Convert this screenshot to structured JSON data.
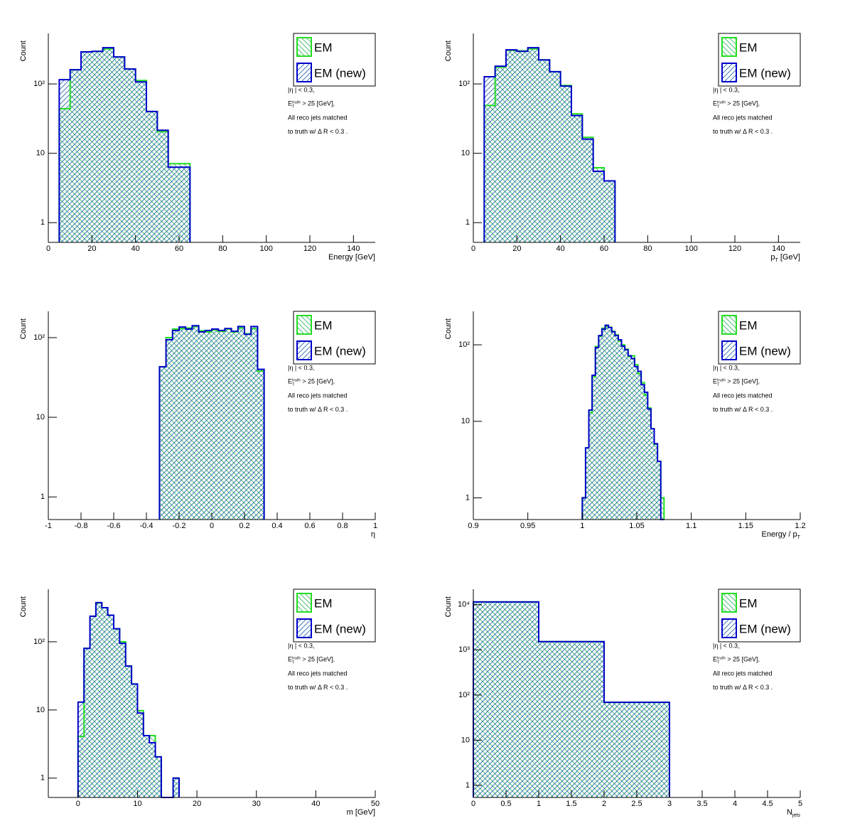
{
  "chart_data": [
    {
      "type": "histogram",
      "x_label": "Energy [GeV]",
      "y_label": "Count",
      "log_y": true,
      "legend": "upper right",
      "xlim": [
        0,
        150
      ],
      "xticks": [
        0,
        20,
        40,
        60,
        80,
        100,
        120,
        140
      ],
      "ylim": [
        0.52,
        535
      ],
      "yticks": [
        1,
        10,
        {
          "value": 100,
          "label": "10²"
        }
      ],
      "annotations": [
        "|η | < 0.3,",
        {
          "text": "E",
          "sup": "truth",
          "sub": "T",
          "suffix": " > 25 [GeV],"
        },
        "All reco jets matched",
        "to truth w/ Δ R < 0.3 ."
      ],
      "bins": [
        5,
        10,
        15,
        20,
        25,
        30,
        35,
        40,
        45,
        50,
        55,
        60,
        65
      ],
      "series": [
        {
          "name": "EM",
          "color": "#22dd22",
          "values": [
            44,
            160,
            290,
            295,
            320,
            245,
            164,
            112,
            40,
            20.5,
            7.1,
            7.1
          ]
        },
        {
          "name": "EM (new)",
          "color": "#0000cc",
          "values": [
            115,
            160,
            290,
            295,
            333,
            245,
            164,
            107,
            40,
            21.5,
            6.3,
            6.3
          ]
        }
      ]
    },
    {
      "type": "histogram",
      "x_label": {
        "text": "p",
        "sub": "T",
        "suffix": " [GeV]"
      },
      "y_label": "Count",
      "log_y": true,
      "legend": "upper right",
      "xlim": [
        0,
        150
      ],
      "xticks": [
        0,
        20,
        40,
        60,
        80,
        100,
        120,
        140
      ],
      "ylim": [
        0.52,
        535
      ],
      "yticks": [
        1,
        10,
        {
          "value": 100,
          "label": "10²"
        }
      ],
      "annotations": [
        "|η | < 0.3,",
        {
          "text": "E",
          "sup": "truth",
          "sub": "T",
          "suffix": " > 25 [GeV],"
        },
        "All reco jets matched",
        "to truth w/ Δ R < 0.3 ."
      ],
      "bins": [
        5,
        10,
        15,
        20,
        25,
        30,
        35,
        40,
        45,
        50,
        55,
        60,
        65
      ],
      "series": [
        {
          "name": "EM",
          "color": "#22dd22",
          "values": [
            49,
            175,
            305,
            300,
            320,
            222,
            150,
            95,
            37,
            17,
            6.2,
            4
          ]
        },
        {
          "name": "EM (new)",
          "color": "#0000cc",
          "values": [
            127,
            180,
            310,
            295,
            333,
            222,
            150,
            93,
            35,
            16,
            5.5,
            4
          ]
        }
      ]
    },
    {
      "type": "histogram",
      "x_label": "η",
      "y_label": "Count",
      "log_y": true,
      "legend": "upper right",
      "xlim": [
        -1,
        1
      ],
      "xticks": [
        -1,
        -0.8,
        -0.6,
        -0.4,
        -0.2,
        0,
        0.2,
        0.4,
        0.6,
        0.8,
        1
      ],
      "ylim": [
        0.52,
        214
      ],
      "yticks": [
        1,
        10,
        {
          "value": 100,
          "label": "10²"
        }
      ],
      "annotations": [
        "|η | < 0.3,",
        {
          "text": "E",
          "sup": "truth",
          "sub": "T",
          "suffix": " > 25 [GeV],"
        },
        "All reco jets matched",
        "to truth w/ Δ R < 0.3 ."
      ],
      "bins": [
        -0.32,
        -0.28,
        -0.24,
        -0.2,
        -0.16,
        -0.12,
        -0.08,
        -0.04,
        0,
        0.04,
        0.08,
        0.12,
        0.16,
        0.2,
        0.24,
        0.28,
        0.32
      ],
      "series": [
        {
          "name": "EM",
          "color": "#22dd22",
          "values": [
            43,
            100,
            128,
            130,
            132,
            138,
            122,
            118,
            125,
            120,
            128,
            118,
            132,
            112,
            130,
            38
          ]
        },
        {
          "name": "EM (new)",
          "color": "#0000cc",
          "values": [
            43,
            94,
            123,
            136,
            128,
            141,
            118,
            123,
            128,
            123,
            130,
            120,
            138,
            110,
            138,
            40
          ]
        }
      ]
    },
    {
      "type": "histogram",
      "x_label": {
        "text": "Energy / p",
        "sub": "T"
      },
      "y_label": "Count",
      "log_y": true,
      "legend": "upper right",
      "xlim": [
        0.9,
        1.2
      ],
      "xticks": [
        0.9,
        0.95,
        1,
        1.05,
        1.1,
        1.15,
        1.2
      ],
      "ylim": [
        0.52,
        274
      ],
      "yticks": [
        1,
        10,
        {
          "value": 100,
          "label": "10²"
        }
      ],
      "annotations": [
        "|η | < 0.3,",
        {
          "text": "E",
          "sup": "truth",
          "sub": "T",
          "suffix": " > 25 [GeV],"
        },
        "All reco jets matched",
        "to truth w/ Δ R < 0.3 ."
      ],
      "bins": [
        1,
        1.003,
        1.006,
        1.009,
        1.012,
        1.015,
        1.018,
        1.021,
        1.024,
        1.027,
        1.03,
        1.033,
        1.036,
        1.039,
        1.042,
        1.045,
        1.048,
        1.051,
        1.054,
        1.057,
        1.06,
        1.063,
        1.066,
        1.069,
        1.072,
        1.075
      ],
      "series": [
        {
          "name": "EM",
          "color": "#22dd22",
          "values": [
            1,
            4.5,
            13,
            38,
            95,
            130,
            165,
            175,
            170,
            150,
            135,
            112,
            100,
            88,
            70,
            72,
            55,
            42,
            32,
            22,
            15,
            8,
            5,
            3,
            1
          ]
        },
        {
          "name": "EM (new)",
          "color": "#0000cc",
          "values": [
            1,
            4.5,
            14,
            40,
            92,
            132,
            160,
            180,
            168,
            148,
            132,
            116,
            96,
            86,
            72,
            66,
            52,
            45,
            30,
            24,
            14.5,
            8,
            5.1,
            3,
            0
          ]
        }
      ]
    },
    {
      "type": "histogram",
      "x_label": "m [GeV]",
      "y_label": "Count",
      "log_y": true,
      "legend": "upper right",
      "xlim": [
        -5,
        50
      ],
      "xticks": [
        0,
        10,
        20,
        30,
        40,
        50
      ],
      "ylim": [
        0.52,
        590
      ],
      "yticks": [
        1,
        10,
        {
          "value": 100,
          "label": "10²"
        }
      ],
      "annotations": [
        "|η | < 0.3,",
        {
          "text": "E",
          "sup": "truth",
          "sub": "T",
          "suffix": " > 25 [GeV],"
        },
        "All reco jets matched",
        "to truth w/ Δ R < 0.3 ."
      ],
      "bins": [
        0,
        1,
        2,
        3,
        4,
        5,
        6,
        7,
        8,
        9,
        10,
        11,
        12,
        13,
        14,
        15,
        16,
        17
      ],
      "series": [
        {
          "name": "EM",
          "color": "#22dd22",
          "values": [
            4.1,
            80,
            237,
            370,
            316,
            245,
            155,
            100,
            44,
            24,
            9.8,
            4.2,
            4.2,
            2.05,
            0,
            0,
            1
          ]
        },
        {
          "name": "EM (new)",
          "color": "#0000cc",
          "values": [
            13,
            80,
            237,
            375,
            316,
            245,
            155,
            95,
            44,
            24,
            9,
            4.2,
            3.3,
            2.05,
            0,
            0,
            1
          ]
        }
      ]
    },
    {
      "type": "histogram",
      "x_label": {
        "text": "N",
        "sub": "jets"
      },
      "y_label": "Count",
      "log_y": true,
      "legend": "upper right",
      "xlim": [
        0,
        5
      ],
      "xticks": [
        0,
        0.5,
        1,
        1.5,
        2,
        2.5,
        3,
        3.5,
        4,
        4.5,
        5
      ],
      "ylim": [
        0.54,
        22000
      ],
      "yticks": [
        1,
        10,
        {
          "value": 100,
          "label": "10²"
        },
        {
          "value": 1000,
          "label": "10³"
        },
        {
          "value": 10000,
          "label": "10⁴"
        }
      ],
      "annotations": [
        "|η | < 0.3,",
        {
          "text": "E",
          "sup": "truth",
          "sub": "T",
          "suffix": " > 25 [GeV],"
        },
        "All reco jets matched",
        "to truth w/ Δ R < 0.3 ."
      ],
      "bins": [
        0,
        1,
        2,
        3
      ],
      "series": [
        {
          "name": "EM",
          "color": "#22dd22",
          "values": [
            11500,
            1520,
            69
          ]
        },
        {
          "name": "EM (new)",
          "color": "#0000cc",
          "values": [
            11500,
            1520,
            69
          ]
        }
      ]
    }
  ]
}
